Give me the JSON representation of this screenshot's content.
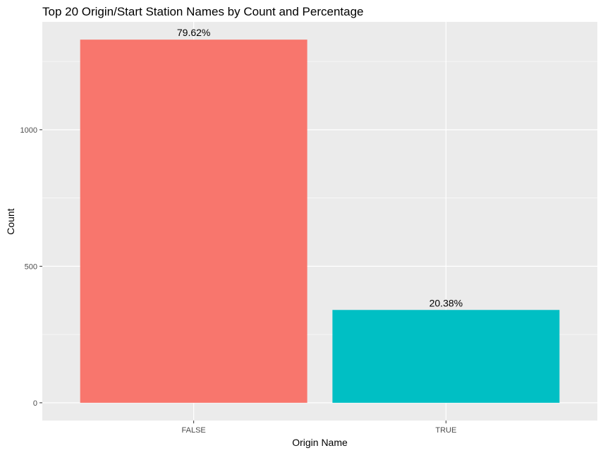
{
  "chart_data": {
    "type": "bar",
    "title": "Top 20 Origin/Start Station Names by Count and Percentage",
    "xlabel": "Origin Name",
    "ylabel": "Count",
    "categories": [
      "FALSE",
      "TRUE"
    ],
    "values": [
      1330,
      340
    ],
    "data_labels": [
      "79.62%",
      "20.38%"
    ],
    "colors": [
      "#F8766D",
      "#00BFC4"
    ],
    "panel_background": "#EBEBEB",
    "grid": true,
    "ylim": [
      -65,
      1395
    ],
    "yticks": [
      0,
      500,
      1000
    ],
    "ytick_labels": [
      "0",
      "500",
      "1000"
    ],
    "legend": "none"
  }
}
